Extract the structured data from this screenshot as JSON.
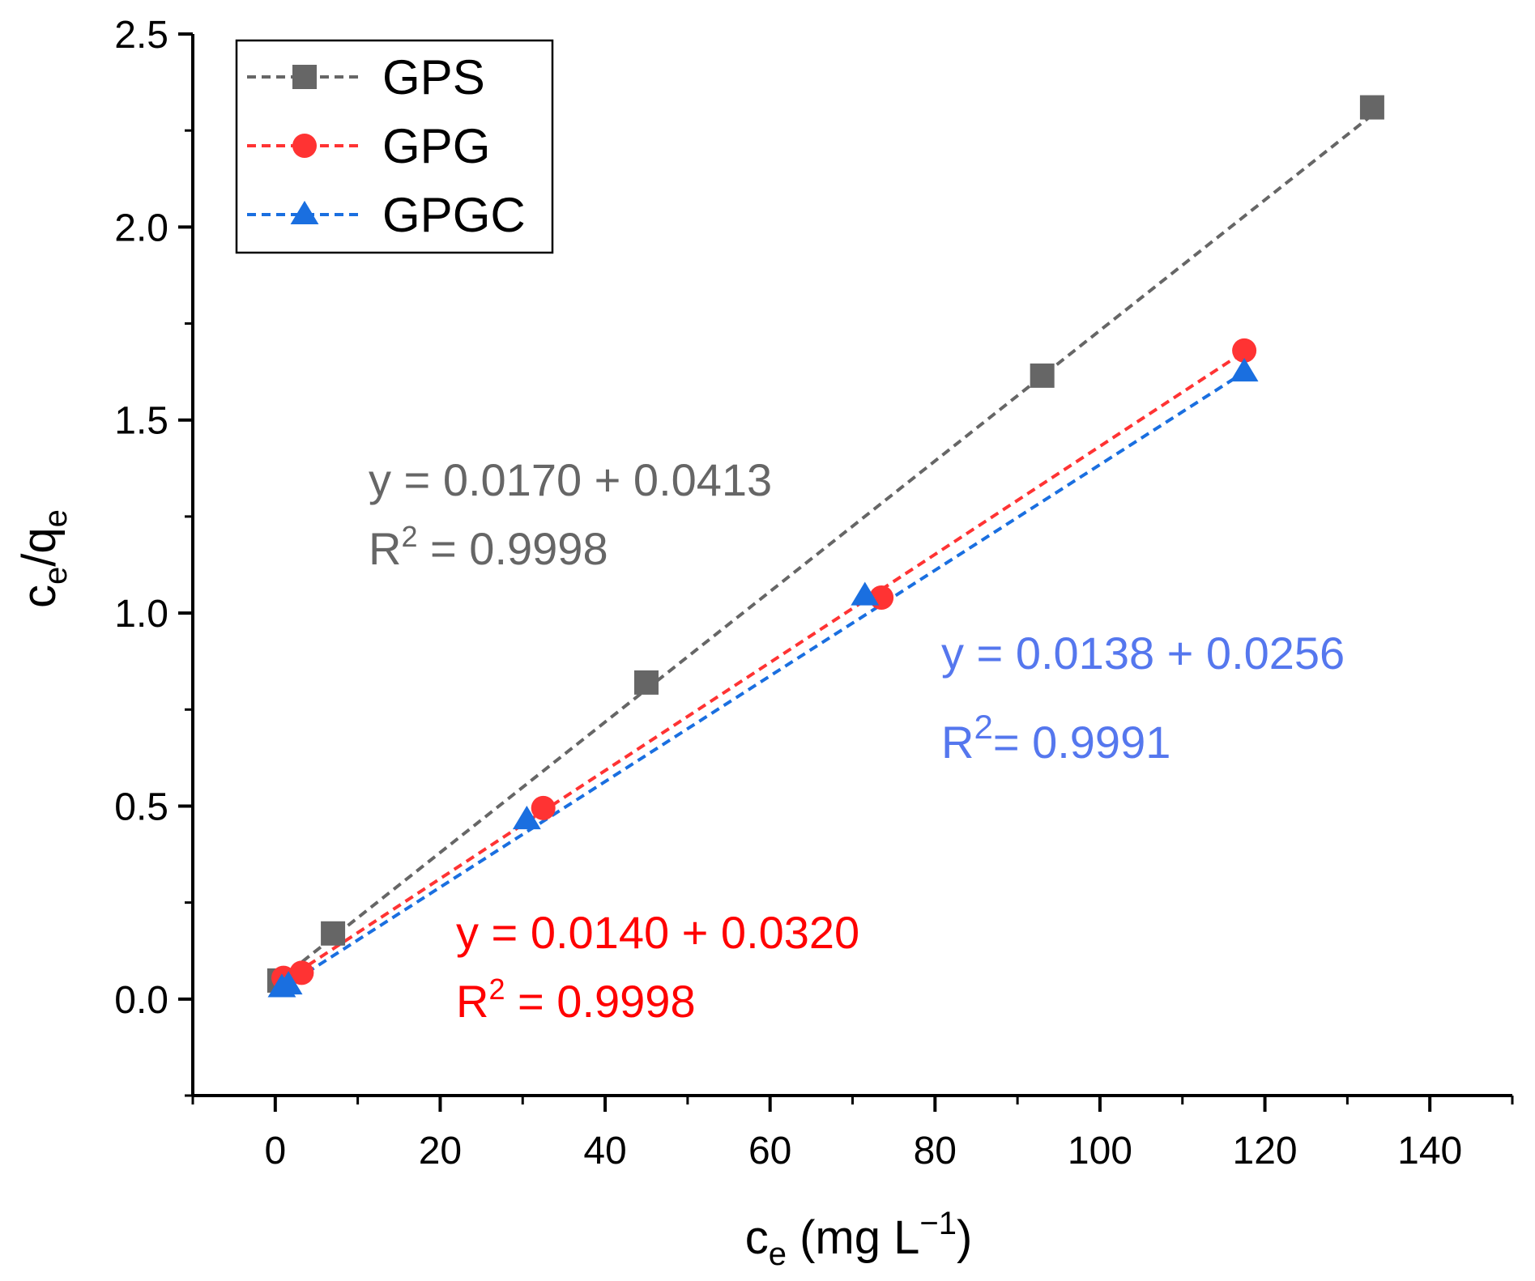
{
  "chart_data": {
    "type": "scatter",
    "xlabel": {
      "base": "c",
      "sub": "e",
      "rest": " (mg L",
      "sup": "−1",
      "end": ")"
    },
    "ylabel": {
      "c": "c",
      "e1": "e",
      "slash": "/q",
      "e2": "e"
    },
    "xlim": [
      -10,
      150
    ],
    "ylim": [
      -0.25,
      2.5
    ],
    "x_ticks": [
      0,
      20,
      40,
      60,
      80,
      100,
      120,
      140
    ],
    "x_tick_labels": [
      "0",
      "20",
      "40",
      "60",
      "80",
      "100",
      "120",
      "140"
    ],
    "y_ticks": [
      0,
      0.5,
      1,
      1.5,
      2,
      2.5
    ],
    "y_tick_labels": [
      "0.0",
      "0.5",
      "1.0",
      "1.5",
      "2.0",
      "2.5"
    ],
    "legend_position": "top-left",
    "series": [
      {
        "name": "GPS",
        "marker": "square",
        "color": "#666666",
        "points": [
          {
            "x": 0.5,
            "y": 0.048
          },
          {
            "x": 7,
            "y": 0.17
          },
          {
            "x": 45,
            "y": 0.82
          },
          {
            "x": 93,
            "y": 1.615
          },
          {
            "x": 133,
            "y": 2.31
          }
        ],
        "fit": [
          [
            0.5,
            0.05
          ],
          [
            133,
            2.29
          ]
        ],
        "equation": "y = 0.0170 + 0.0413",
        "r2_prefix": "R",
        "r2_sup": "2",
        "r2_value": " = 0.9998",
        "anno_color": "#666666"
      },
      {
        "name": "GPG",
        "marker": "circle",
        "color": "#ff3333",
        "points": [
          {
            "x": 1,
            "y": 0.055
          },
          {
            "x": 3.2,
            "y": 0.068
          },
          {
            "x": 32.5,
            "y": 0.495
          },
          {
            "x": 73.5,
            "y": 1.04
          },
          {
            "x": 117.5,
            "y": 1.68
          }
        ],
        "fit": [
          [
            1,
            0.046
          ],
          [
            117.5,
            1.677
          ]
        ],
        "equation": "y = 0.0140 + 0.0320",
        "r2_prefix": "R",
        "r2_sup": "2",
        "r2_value": " = 0.9998",
        "anno_color": "#ff0000"
      },
      {
        "name": "GPGC",
        "marker": "triangle",
        "color": "#1a6fe0",
        "points": [
          {
            "x": 0.8,
            "y": 0.03
          },
          {
            "x": 1.6,
            "y": 0.037
          },
          {
            "x": 30.5,
            "y": 0.465
          },
          {
            "x": 71.5,
            "y": 1.045
          },
          {
            "x": 117.5,
            "y": 1.625
          }
        ],
        "fit": [
          [
            0.8,
            0.027
          ],
          [
            117.5,
            1.624
          ]
        ],
        "equation": "y = 0.0138 + 0.0256",
        "r2_prefix": "R",
        "r2_sup": "2",
        "r2_value": "= 0.9991",
        "anno_color": "#5577ee"
      }
    ]
  }
}
